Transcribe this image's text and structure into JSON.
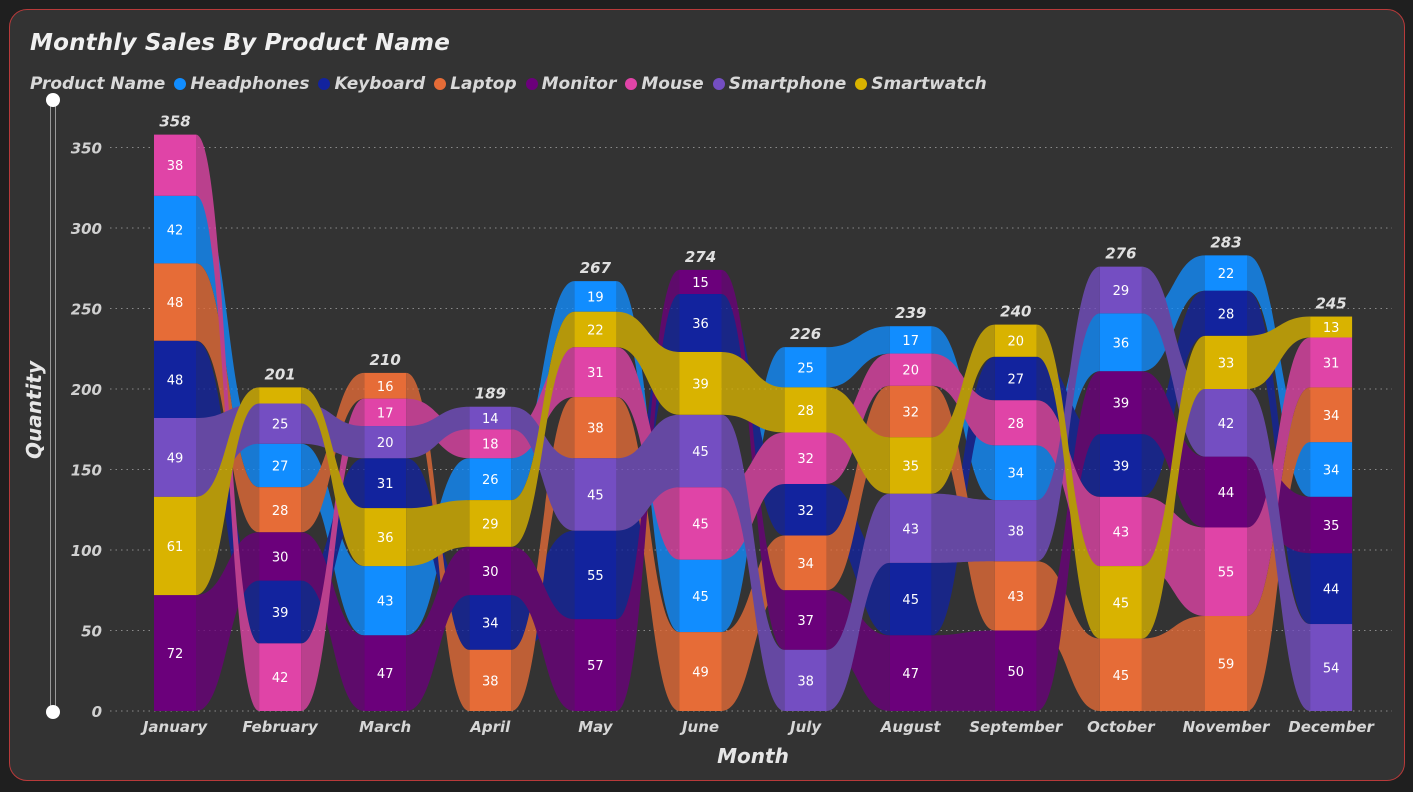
{
  "chart_data": {
    "type": "bar",
    "stacked": true,
    "sorted_ribbon": true,
    "title": "Monthly Sales By Product Name",
    "legend_title": "Product Name",
    "legend_position": "top-left",
    "xlabel": "Month",
    "ylabel": "Quantity",
    "ylim": [
      0,
      370
    ],
    "yticks": [
      0,
      50,
      100,
      150,
      200,
      250,
      300,
      350
    ],
    "grid": true,
    "categories": [
      "January",
      "February",
      "March",
      "April",
      "May",
      "June",
      "July",
      "August",
      "September",
      "October",
      "November",
      "December"
    ],
    "totals": [
      358,
      201,
      210,
      189,
      267,
      274,
      226,
      239,
      240,
      276,
      283,
      245
    ],
    "series": [
      {
        "name": "Headphones",
        "color": "#118DFF",
        "values": [
          42,
          27,
          43,
          26,
          19,
          45,
          25,
          17,
          34,
          36,
          22,
          34
        ]
      },
      {
        "name": "Keyboard",
        "color": "#12239E",
        "values": [
          48,
          39,
          31,
          34,
          55,
          36,
          32,
          45,
          27,
          39,
          28,
          44
        ]
      },
      {
        "name": "Laptop",
        "color": "#E66C37",
        "values": [
          48,
          28,
          16,
          38,
          38,
          49,
          34,
          32,
          43,
          45,
          59,
          34
        ]
      },
      {
        "name": "Monitor",
        "color": "#6B007B",
        "values": [
          72,
          30,
          47,
          30,
          57,
          15,
          37,
          47,
          50,
          39,
          44,
          35
        ]
      },
      {
        "name": "Mouse",
        "color": "#E044A7",
        "values": [
          38,
          42,
          17,
          18,
          31,
          45,
          32,
          20,
          28,
          43,
          55,
          31
        ]
      },
      {
        "name": "Smartphone",
        "color": "#744EC2",
        "values": [
          49,
          25,
          20,
          14,
          45,
          45,
          38,
          43,
          38,
          29,
          42,
          54
        ]
      },
      {
        "name": "Smartwatch",
        "color": "#D9B300",
        "values": [
          61,
          10,
          36,
          29,
          22,
          39,
          28,
          35,
          20,
          45,
          33,
          13
        ]
      }
    ]
  }
}
